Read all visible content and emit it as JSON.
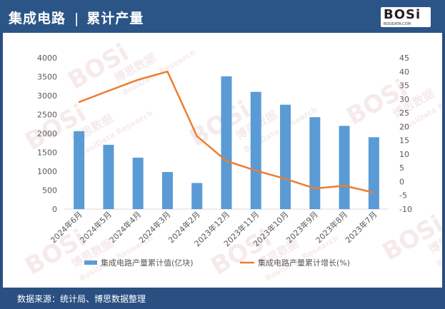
{
  "header": {
    "title_main": "集成电路",
    "title_sep": "|",
    "title_sub": "累计产量"
  },
  "logo": {
    "brand": "BOSi",
    "domain": "BOSIDATA.COM"
  },
  "watermark": {
    "text": "BOSi",
    "cn": "博思数据",
    "en": "BosiData Research"
  },
  "footer": {
    "source": "数据来源：统计局、博思数据整理"
  },
  "colors": {
    "bar": "#5b9bd5",
    "line": "#ed7d31",
    "header": "#2b5587",
    "axis_text": "#595959",
    "grid": "#d9d9d9"
  },
  "chart_data": {
    "type": "bar",
    "title": "",
    "categories": [
      "2024年6月",
      "2024年5月",
      "2024年4月",
      "2024年3月",
      "2024年2月",
      "2023年12月",
      "2023年11月",
      "2023年10月",
      "2023年9月",
      "2023年8月",
      "2023年7月"
    ],
    "series": [
      {
        "name": "集成电路产量累计值(亿块)",
        "type": "bar",
        "axis": "left",
        "values": [
          2060,
          1700,
          1360,
          980,
          690,
          3510,
          3100,
          2760,
          2430,
          2200,
          1900
        ]
      },
      {
        "name": "集成电路产量累计增长(%)",
        "type": "line",
        "axis": "right",
        "values": [
          28.9,
          33,
          37,
          40,
          16.5,
          7.5,
          4,
          1,
          -2.5,
          -1.5,
          -4
        ]
      }
    ],
    "y_left": {
      "min": 0,
      "max": 4000,
      "ticks": [
        0,
        500,
        1000,
        1500,
        2000,
        2500,
        3000,
        3500,
        4000
      ]
    },
    "y_right": {
      "min": -10,
      "max": 45,
      "ticks": [
        -10,
        -5,
        0,
        5,
        10,
        15,
        20,
        25,
        30,
        35,
        40,
        45
      ]
    },
    "legend_position": "bottom",
    "grid": false
  }
}
